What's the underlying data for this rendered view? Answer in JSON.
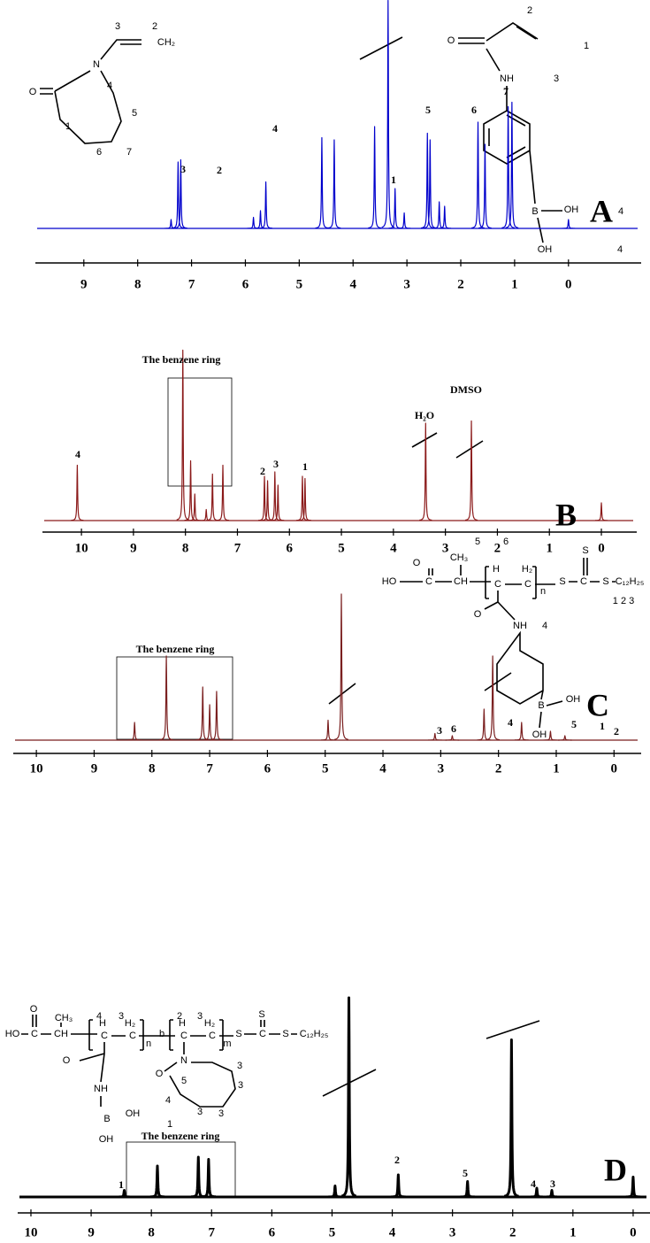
{
  "chart_data": [
    {
      "type": "spectrum",
      "panel_label": "A",
      "color": "#0000cc",
      "x": [
        7.38,
        7.25,
        7.2,
        5.85,
        5.72,
        5.62,
        4.58,
        4.35,
        3.6,
        3.35,
        3.22,
        3.05,
        2.62,
        2.57,
        2.4,
        2.3,
        1.68,
        1.55,
        1.12,
        1.05,
        0.0
      ],
      "values": [
        4,
        30,
        31,
        5,
        8,
        21,
        41,
        40,
        46,
        103,
        18,
        7,
        43,
        40,
        12,
        10,
        48,
        38,
        55,
        57,
        4
      ],
      "xlim": [
        9.9,
        -1.35
      ],
      "xticks": [
        9,
        8,
        7,
        6,
        5,
        4,
        3,
        2,
        1,
        0
      ],
      "peak_labels": [
        "3",
        "2",
        "4",
        "1",
        "5",
        "6",
        "7"
      ],
      "annotations": [],
      "structure": [
        "3",
        "2",
        "CH₂",
        "O",
        "N",
        "4",
        "5",
        "1",
        "6",
        "7"
      ]
    },
    {
      "type": "spectrum",
      "panel_label": "B",
      "color": "#8b1a1a",
      "x": [
        10.08,
        8.05,
        7.9,
        7.82,
        7.6,
        7.48,
        7.28,
        6.48,
        6.42,
        6.28,
        6.22,
        5.75,
        5.7,
        3.38,
        2.5,
        0.0
      ],
      "values": [
        25,
        77,
        27,
        12,
        5,
        21,
        25,
        20,
        18,
        22,
        16,
        20,
        19,
        44,
        45,
        8
      ],
      "xlim": [
        10.75,
        -0.68
      ],
      "xticks": [
        10,
        9,
        8,
        7,
        6,
        5,
        4,
        3,
        2,
        1,
        0
      ],
      "peak_labels": [
        "4",
        "2",
        "3",
        "1"
      ],
      "annotations": [
        "The benzene ring",
        "H₂O",
        "DMSO"
      ],
      "structure": [
        "2",
        "1",
        "O",
        "NH",
        "3",
        "B",
        "OH",
        "4",
        "OH",
        "4"
      ]
    },
    {
      "type": "spectrum",
      "panel_label": "C",
      "color": "#7a1f1f",
      "x": [
        8.3,
        7.75,
        7.12,
        7.0,
        6.88,
        4.95,
        4.72,
        3.1,
        2.8,
        2.25,
        2.1,
        1.6,
        1.1,
        0.85
      ],
      "values": [
        8,
        38,
        24,
        16,
        22,
        9,
        66,
        3,
        2,
        14,
        38,
        8,
        4,
        2
      ],
      "xlim": [
        10.4,
        -0.47
      ],
      "xticks": [
        10,
        9,
        8,
        7,
        6,
        5,
        4,
        3,
        2,
        1,
        0
      ],
      "peak_labels": [
        "3",
        "6",
        "4",
        "5",
        "1",
        "2"
      ],
      "annotations": [
        "The benzene ring"
      ],
      "structure": [
        "5",
        "6",
        "CH₃",
        "HO",
        "O",
        "C",
        "CH",
        "H",
        "C",
        "H₂",
        "C",
        "n",
        "S",
        "C",
        "S",
        "S",
        "C₁₂H₂₅",
        "1 2 3",
        "O",
        "NH",
        "4",
        "B",
        "OH",
        "OH"
      ]
    },
    {
      "type": "spectrum",
      "panel_label": "D",
      "color": "#000000",
      "x": [
        8.45,
        7.9,
        7.22,
        7.05,
        4.95,
        4.72,
        3.9,
        2.75,
        2.02,
        1.6,
        1.35,
        0.0
      ],
      "values": [
        3,
        14,
        18,
        17,
        5,
        90,
        10,
        7,
        71,
        4,
        3,
        9
      ],
      "xlim": [
        10.22,
        -0.28
      ],
      "xticks": [
        10,
        9,
        8,
        7,
        6,
        5,
        4,
        3,
        2,
        1,
        0
      ],
      "peak_labels": [
        "1",
        "2",
        "5",
        "4",
        "3"
      ],
      "annotations": [
        "The benzene ring"
      ],
      "structure": [
        "O",
        "CH₃",
        "HO",
        "C",
        "CH",
        "4",
        "3",
        "H",
        "C",
        "H₂",
        "C",
        "n",
        "b",
        "2",
        "3",
        "H",
        "C",
        "H₂",
        "C",
        "m",
        "S",
        "S",
        "C",
        "S",
        "C₁₂H₂₅",
        "O",
        "N",
        "5",
        "4",
        "3",
        "3",
        "3",
        "3",
        "O",
        "NH",
        "B",
        "OH",
        "1",
        "OH"
      ]
    }
  ]
}
